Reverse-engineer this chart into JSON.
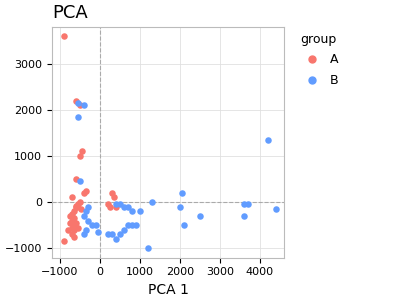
{
  "title": "PCA",
  "xlabel": "PCA 1",
  "xlim": [
    -1200,
    4600
  ],
  "ylim": [
    -1200,
    3800
  ],
  "xticks": [
    -1000,
    0,
    1000,
    2000,
    3000,
    4000
  ],
  "yticks": [
    -1000,
    0,
    1000,
    2000,
    3000
  ],
  "vline_x": 0,
  "hline_y": 0,
  "group_A_color": "#F8766D",
  "group_B_color": "#619CFF",
  "group_A_points": [
    [
      -900,
      3600
    ],
    [
      -600,
      2200
    ],
    [
      -500,
      2100
    ],
    [
      -450,
      1100
    ],
    [
      -500,
      1000
    ],
    [
      -600,
      500
    ],
    [
      -400,
      200
    ],
    [
      -350,
      250
    ],
    [
      -700,
      100
    ],
    [
      -600,
      -100
    ],
    [
      -650,
      -200
    ],
    [
      -700,
      -250
    ],
    [
      -750,
      -300
    ],
    [
      -650,
      -350
    ],
    [
      -700,
      -400
    ],
    [
      -750,
      -450
    ],
    [
      -600,
      -450
    ],
    [
      -650,
      -500
    ],
    [
      -700,
      -550
    ],
    [
      -550,
      -550
    ],
    [
      -800,
      -600
    ],
    [
      -650,
      -600
    ],
    [
      -700,
      -700
    ],
    [
      -650,
      -750
    ],
    [
      -900,
      -850
    ],
    [
      -500,
      0
    ],
    [
      -550,
      -50
    ],
    [
      -600,
      -80
    ],
    [
      -580,
      -100
    ],
    [
      -480,
      -150
    ],
    [
      300,
      200
    ],
    [
      350,
      100
    ],
    [
      200,
      -50
    ],
    [
      250,
      -100
    ],
    [
      400,
      -100
    ]
  ],
  "group_B_points": [
    [
      -550,
      2150
    ],
    [
      -400,
      2100
    ],
    [
      -550,
      1850
    ],
    [
      -500,
      450
    ],
    [
      -300,
      -100
    ],
    [
      -350,
      -200
    ],
    [
      -400,
      -300
    ],
    [
      -300,
      -400
    ],
    [
      -200,
      -500
    ],
    [
      -100,
      -500
    ],
    [
      -350,
      -600
    ],
    [
      -400,
      -700
    ],
    [
      -50,
      -650
    ],
    [
      200,
      -700
    ],
    [
      300,
      -700
    ],
    [
      500,
      -700
    ],
    [
      400,
      -800
    ],
    [
      600,
      -600
    ],
    [
      700,
      -500
    ],
    [
      800,
      -500
    ],
    [
      900,
      -500
    ],
    [
      400,
      -50
    ],
    [
      500,
      -50
    ],
    [
      600,
      -100
    ],
    [
      700,
      -100
    ],
    [
      800,
      -200
    ],
    [
      1000,
      -200
    ],
    [
      1300,
      0
    ],
    [
      1200,
      -1000
    ],
    [
      2000,
      -100
    ],
    [
      2050,
      200
    ],
    [
      2100,
      -500
    ],
    [
      2500,
      -300
    ],
    [
      3600,
      -50
    ],
    [
      3700,
      -50
    ],
    [
      3600,
      -300
    ],
    [
      4200,
      1350
    ],
    [
      4400,
      -150
    ]
  ],
  "legend_title": "group",
  "bg_color": "#FFFFFF",
  "grid_color": "#E0E0E0",
  "title_fontsize": 13,
  "axis_fontsize": 10,
  "tick_fontsize": 8,
  "marker_size": 22,
  "legend_fontsize": 9,
  "figure_width": 4.0,
  "figure_height": 2.96,
  "dpi": 100
}
